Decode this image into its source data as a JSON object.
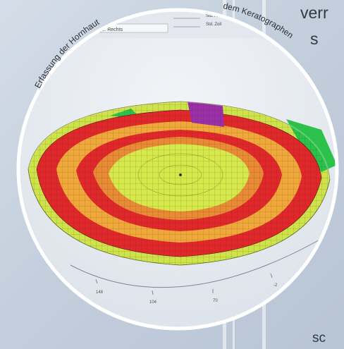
{
  "arc_text_left": "Erfassung der Hornhaut",
  "arc_text_right": "dem Keratographen",
  "side_text": {
    "line1": "verr",
    "line2": "s"
  },
  "bottom_text": "sc",
  "screenshot_labels": {
    "label_1": "Auge: Rechts",
    "label_2": "Std. Abw.",
    "label_3": "Std. Zoll"
  },
  "axis_ticks": [
    "148",
    "104",
    "70",
    "-2"
  ],
  "colors": {
    "core": "#d6e84a",
    "mid": "#f0a83a",
    "ring_red": "#e0282a",
    "outer": "#c8e048",
    "peak": "#9b2fa6",
    "green": "#2cc14a"
  }
}
